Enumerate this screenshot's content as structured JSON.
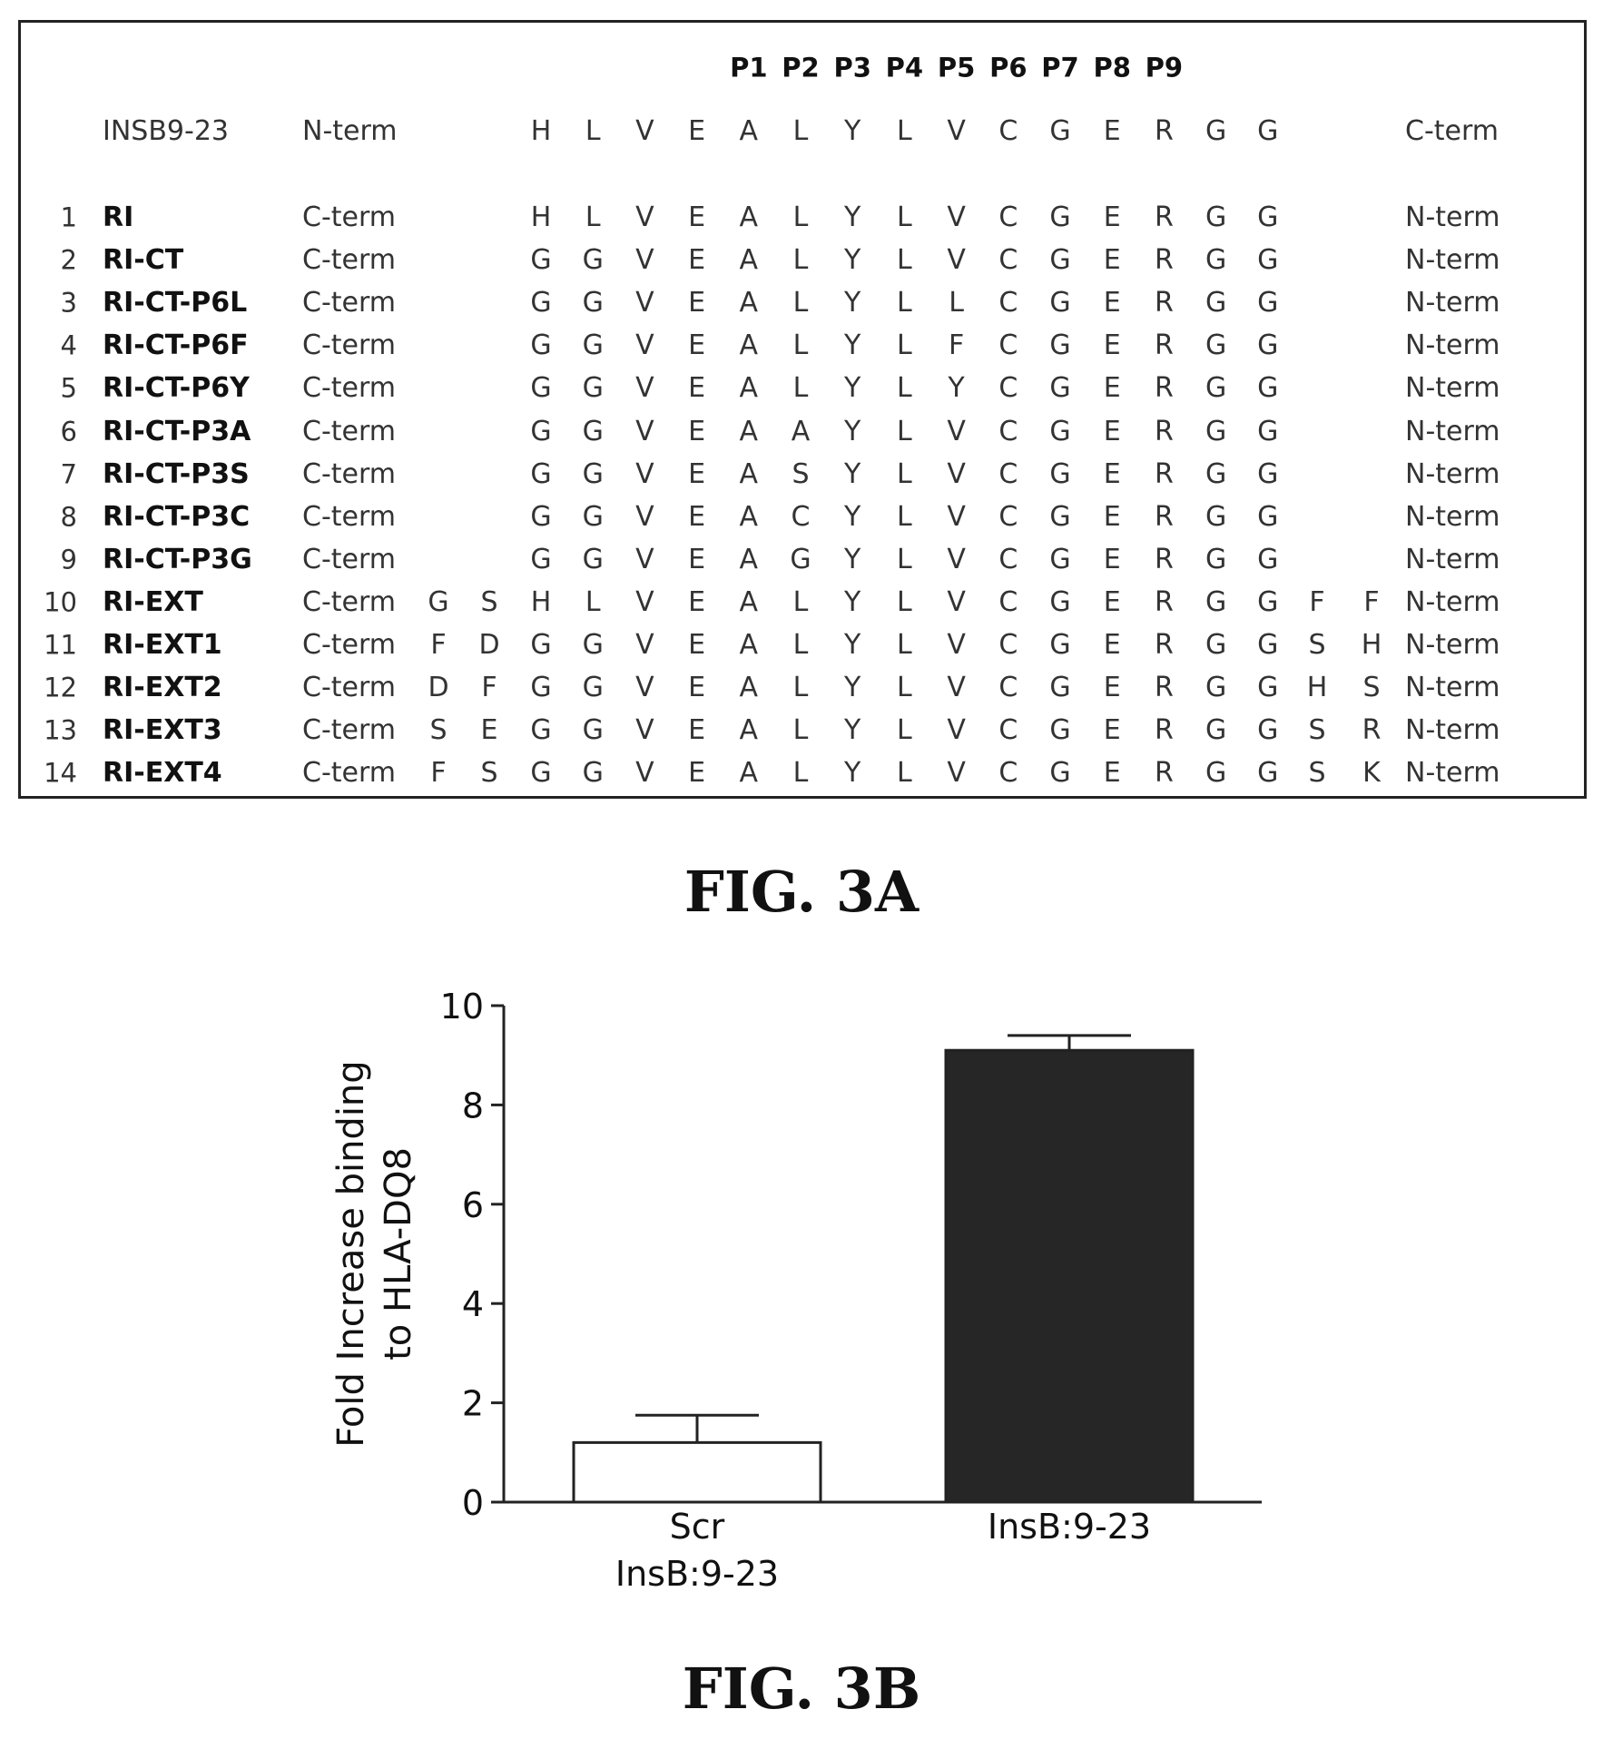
{
  "figure_a": {
    "caption": "FIG. 3A",
    "position_labels": [
      "P1",
      "P2",
      "P3",
      "P4",
      "P5",
      "P6",
      "P7",
      "P8",
      "P9"
    ],
    "header": {
      "name": "INSB9-23",
      "left_term": "N-term",
      "residues": [
        "H",
        "L",
        "V",
        "E",
        "A",
        "L",
        "Y",
        "L",
        "V",
        "C",
        "G",
        "E",
        "R",
        "G",
        "G"
      ],
      "right_term": "C-term"
    },
    "rows": [
      {
        "num": "1",
        "name": "RI",
        "left_term": "C-term",
        "ext_left": [
          "",
          ""
        ],
        "residues": [
          "H",
          "L",
          "V",
          "E",
          "A",
          "L",
          "Y",
          "L",
          "V",
          "C",
          "G",
          "E",
          "R",
          "G",
          "G"
        ],
        "ext_right": [
          "",
          ""
        ],
        "right_term": "N-term"
      },
      {
        "num": "2",
        "name": "RI-CT",
        "left_term": "C-term",
        "ext_left": [
          "",
          ""
        ],
        "residues": [
          "G",
          "G",
          "V",
          "E",
          "A",
          "L",
          "Y",
          "L",
          "V",
          "C",
          "G",
          "E",
          "R",
          "G",
          "G"
        ],
        "ext_right": [
          "",
          ""
        ],
        "right_term": "N-term"
      },
      {
        "num": "3",
        "name": "RI-CT-P6L",
        "left_term": "C-term",
        "ext_left": [
          "",
          ""
        ],
        "residues": [
          "G",
          "G",
          "V",
          "E",
          "A",
          "L",
          "Y",
          "L",
          "L",
          "C",
          "G",
          "E",
          "R",
          "G",
          "G"
        ],
        "ext_right": [
          "",
          ""
        ],
        "right_term": "N-term"
      },
      {
        "num": "4",
        "name": "RI-CT-P6F",
        "left_term": "C-term",
        "ext_left": [
          "",
          ""
        ],
        "residues": [
          "G",
          "G",
          "V",
          "E",
          "A",
          "L",
          "Y",
          "L",
          "F",
          "C",
          "G",
          "E",
          "R",
          "G",
          "G"
        ],
        "ext_right": [
          "",
          ""
        ],
        "right_term": "N-term"
      },
      {
        "num": "5",
        "name": "RI-CT-P6Y",
        "left_term": "C-term",
        "ext_left": [
          "",
          ""
        ],
        "residues": [
          "G",
          "G",
          "V",
          "E",
          "A",
          "L",
          "Y",
          "L",
          "Y",
          "C",
          "G",
          "E",
          "R",
          "G",
          "G"
        ],
        "ext_right": [
          "",
          ""
        ],
        "right_term": "N-term"
      },
      {
        "num": "6",
        "name": "RI-CT-P3A",
        "left_term": "C-term",
        "ext_left": [
          "",
          ""
        ],
        "residues": [
          "G",
          "G",
          "V",
          "E",
          "A",
          "A",
          "Y",
          "L",
          "V",
          "C",
          "G",
          "E",
          "R",
          "G",
          "G"
        ],
        "ext_right": [
          "",
          ""
        ],
        "right_term": "N-term"
      },
      {
        "num": "7",
        "name": "RI-CT-P3S",
        "left_term": "C-term",
        "ext_left": [
          "",
          ""
        ],
        "residues": [
          "G",
          "G",
          "V",
          "E",
          "A",
          "S",
          "Y",
          "L",
          "V",
          "C",
          "G",
          "E",
          "R",
          "G",
          "G"
        ],
        "ext_right": [
          "",
          ""
        ],
        "right_term": "N-term"
      },
      {
        "num": "8",
        "name": "RI-CT-P3C",
        "left_term": "C-term",
        "ext_left": [
          "",
          ""
        ],
        "residues": [
          "G",
          "G",
          "V",
          "E",
          "A",
          "C",
          "Y",
          "L",
          "V",
          "C",
          "G",
          "E",
          "R",
          "G",
          "G"
        ],
        "ext_right": [
          "",
          ""
        ],
        "right_term": "N-term"
      },
      {
        "num": "9",
        "name": "RI-CT-P3G",
        "left_term": "C-term",
        "ext_left": [
          "",
          ""
        ],
        "residues": [
          "G",
          "G",
          "V",
          "E",
          "A",
          "G",
          "Y",
          "L",
          "V",
          "C",
          "G",
          "E",
          "R",
          "G",
          "G"
        ],
        "ext_right": [
          "",
          ""
        ],
        "right_term": "N-term"
      },
      {
        "num": "10",
        "name": "RI-EXT",
        "left_term": "C-term",
        "ext_left": [
          "G",
          "S"
        ],
        "residues": [
          "H",
          "L",
          "V",
          "E",
          "A",
          "L",
          "Y",
          "L",
          "V",
          "C",
          "G",
          "E",
          "R",
          "G",
          "G"
        ],
        "ext_right": [
          "F",
          "F"
        ],
        "right_term": "N-term"
      },
      {
        "num": "11",
        "name": "RI-EXT1",
        "left_term": "C-term",
        "ext_left": [
          "F",
          "D"
        ],
        "residues": [
          "G",
          "G",
          "V",
          "E",
          "A",
          "L",
          "Y",
          "L",
          "V",
          "C",
          "G",
          "E",
          "R",
          "G",
          "G"
        ],
        "ext_right": [
          "S",
          "H"
        ],
        "right_term": "N-term"
      },
      {
        "num": "12",
        "name": "RI-EXT2",
        "left_term": "C-term",
        "ext_left": [
          "D",
          "F"
        ],
        "residues": [
          "G",
          "G",
          "V",
          "E",
          "A",
          "L",
          "Y",
          "L",
          "V",
          "C",
          "G",
          "E",
          "R",
          "G",
          "G"
        ],
        "ext_right": [
          "H",
          "S"
        ],
        "right_term": "N-term"
      },
      {
        "num": "13",
        "name": "RI-EXT3",
        "left_term": "C-term",
        "ext_left": [
          "S",
          "E"
        ],
        "residues": [
          "G",
          "G",
          "V",
          "E",
          "A",
          "L",
          "Y",
          "L",
          "V",
          "C",
          "G",
          "E",
          "R",
          "G",
          "G"
        ],
        "ext_right": [
          "S",
          "R"
        ],
        "right_term": "N-term"
      },
      {
        "num": "14",
        "name": "RI-EXT4",
        "left_term": "C-term",
        "ext_left": [
          "F",
          "S"
        ],
        "residues": [
          "G",
          "G",
          "V",
          "E",
          "A",
          "L",
          "Y",
          "L",
          "V",
          "C",
          "G",
          "E",
          "R",
          "G",
          "G"
        ],
        "ext_right": [
          "S",
          "K"
        ],
        "right_term": "N-term"
      }
    ]
  },
  "figure_b": {
    "caption": "FIG. 3B"
  },
  "chart_data": {
    "type": "bar",
    "categories": [
      [
        "Scr",
        "InsB:9-23"
      ],
      [
        "InsB:9-23"
      ]
    ],
    "values": [
      1.2,
      9.1
    ],
    "error_upper": [
      1.75,
      9.4
    ],
    "bar_colors": [
      "#ffffff",
      "#262626"
    ],
    "ylabel": [
      "Fold Increase binding",
      "to HLA-DQ8"
    ],
    "ylim": [
      0,
      10
    ],
    "yticks": [
      0,
      2,
      4,
      6,
      8,
      10
    ],
    "grid": false,
    "legend": "none"
  }
}
